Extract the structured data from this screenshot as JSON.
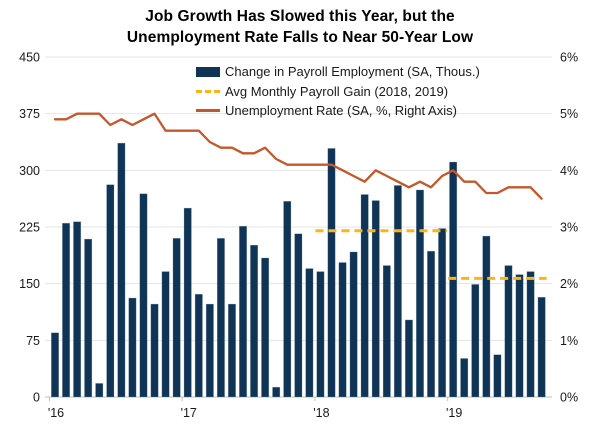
{
  "title": {
    "line1": "Job Growth Has Slowed this Year, but the",
    "line2": "Unemployment Rate Falls to Near 50-Year Low"
  },
  "colors": {
    "bar": "#103456",
    "bar_edge": "#86A0B6",
    "avg_dashed": "#FDB515",
    "unemployment_line": "#C4582A",
    "grid": "#E6E6E6",
    "axis": "#BFBFBF",
    "tick_text": "#1A1A1A",
    "title_text": "#000000"
  },
  "chart_data": {
    "type": "combo-bar-line",
    "grid": true,
    "legend_position": "inside-top-center",
    "categories": [
      "2016-01",
      "2016-02",
      "2016-03",
      "2016-04",
      "2016-05",
      "2016-06",
      "2016-07",
      "2016-08",
      "2016-09",
      "2016-10",
      "2016-11",
      "2016-12",
      "2017-01",
      "2017-02",
      "2017-03",
      "2017-04",
      "2017-05",
      "2017-06",
      "2017-07",
      "2017-08",
      "2017-09",
      "2017-10",
      "2017-11",
      "2017-12",
      "2018-01",
      "2018-02",
      "2018-03",
      "2018-04",
      "2018-05",
      "2018-06",
      "2018-07",
      "2018-08",
      "2018-09",
      "2018-10",
      "2018-11",
      "2018-12",
      "2019-01",
      "2019-02",
      "2019-03",
      "2019-04",
      "2019-05",
      "2019-06",
      "2019-07",
      "2019-08",
      "2019-09"
    ],
    "series": [
      {
        "name": "Change in Payroll Employment (SA, Thous.)",
        "type": "bar",
        "axis": "left",
        "values": [
          85,
          230,
          232,
          209,
          18,
          281,
          336,
          131,
          269,
          123,
          166,
          210,
          250,
          136,
          123,
          210,
          123,
          226,
          201,
          184,
          13,
          259,
          216,
          170,
          166,
          329,
          178,
          192,
          268,
          260,
          174,
          280,
          102,
          274,
          193,
          223,
          311,
          51,
          149,
          213,
          56,
          174,
          162,
          166,
          132
        ]
      },
      {
        "name": "Avg Monthly Payroll Gain (2018, 2019)",
        "type": "dashed-average-line",
        "axis": "left",
        "segments": [
          {
            "label": "2018 average",
            "value": 220,
            "start": "2018-01",
            "end": "2018-12"
          },
          {
            "label": "2019 average",
            "value": 157,
            "start": "2019-01",
            "end": "2019-09"
          }
        ]
      },
      {
        "name": "Unemployment Rate (SA, %, Right Axis)",
        "type": "line",
        "axis": "right",
        "values": [
          4.9,
          4.9,
          5.0,
          5.0,
          5.0,
          4.8,
          4.9,
          4.8,
          4.9,
          5.0,
          4.7,
          4.7,
          4.7,
          4.7,
          4.5,
          4.4,
          4.4,
          4.3,
          4.3,
          4.4,
          4.2,
          4.1,
          4.1,
          4.1,
          4.1,
          4.1,
          4.0,
          3.9,
          3.8,
          4.0,
          3.9,
          3.8,
          3.7,
          3.8,
          3.7,
          3.9,
          4.0,
          3.8,
          3.8,
          3.6,
          3.6,
          3.7,
          3.7,
          3.7,
          3.5
        ]
      }
    ],
    "left_axis": {
      "min": 0,
      "max": 450,
      "ticks": [
        450,
        375,
        300,
        225,
        150,
        75,
        0
      ]
    },
    "right_axis": {
      "min": 0,
      "max": 6,
      "ticks": [
        6,
        5,
        4,
        3,
        2,
        1,
        0
      ],
      "suffix": "%"
    },
    "x_ticks": [
      {
        "label": "'16",
        "month": "2016-01"
      },
      {
        "label": "'17",
        "month": "2017-01"
      },
      {
        "label": "'18",
        "month": "2018-01"
      },
      {
        "label": "'19",
        "month": "2019-01"
      }
    ]
  }
}
